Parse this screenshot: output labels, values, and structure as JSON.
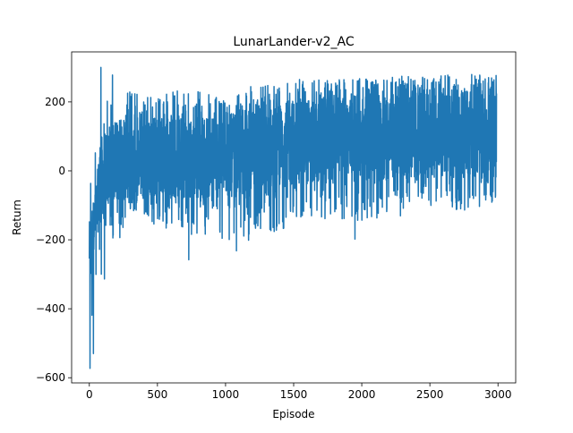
{
  "chart_data": {
    "type": "line",
    "title": "LunarLander-v2_AC",
    "xlabel": "Episode",
    "ylabel": "Return",
    "xlim": [
      -130,
      3130
    ],
    "ylim": [
      -615,
      345
    ],
    "x_ticks": [
      0,
      500,
      1000,
      1500,
      2000,
      2500,
      3000
    ],
    "y_ticks": [
      -600,
      -400,
      -200,
      0,
      200
    ],
    "x_tick_labels": [
      "0",
      "500",
      "1000",
      "1500",
      "2000",
      "2500",
      "3000"
    ],
    "y_tick_labels": [
      "−600",
      "−400",
      "−200",
      "0",
      "200"
    ],
    "grid": false,
    "series": [
      {
        "color": "#1f77b4",
        "n_points": 2990,
        "envelope": {
          "x": [
            0,
            20,
            50,
            80,
            120,
            150,
            200,
            300,
            500,
            700,
            900,
            1000,
            1200,
            1400,
            1500,
            1800,
            2000,
            2300,
            2500,
            2800,
            2985
          ],
          "upper": [
            -60,
            20,
            150,
            300,
            180,
            280,
            120,
            250,
            240,
            230,
            230,
            200,
            250,
            250,
            265,
            265,
            270,
            275,
            280,
            280,
            280
          ],
          "lower": [
            -370,
            -575,
            -390,
            -390,
            -300,
            -280,
            -240,
            -110,
            -170,
            -180,
            -200,
            -210,
            -200,
            -170,
            -160,
            -140,
            -150,
            -130,
            -110,
            -120,
            -90
          ],
          "center_upper": [
            -150,
            -100,
            -50,
            100,
            110,
            130,
            140,
            150,
            160,
            160,
            165,
            165,
            170,
            195,
            210,
            215,
            220,
            230,
            235,
            240,
            240
          ],
          "center_lower": [
            -300,
            -250,
            -200,
            -150,
            -110,
            -100,
            -90,
            -80,
            -80,
            -80,
            -80,
            -80,
            -70,
            -50,
            -40,
            -35,
            -30,
            -25,
            -20,
            -20,
            -20
          ]
        },
        "notable_values": [
          {
            "x": 5,
            "y": -573
          },
          {
            "x": 30,
            "y": -530
          },
          {
            "x": 85,
            "y": 300
          },
          {
            "x": 170,
            "y": 278
          },
          {
            "x": 730,
            "y": -258
          },
          {
            "x": 1080,
            "y": -232
          },
          {
            "x": 1950,
            "y": -198
          }
        ]
      }
    ]
  }
}
